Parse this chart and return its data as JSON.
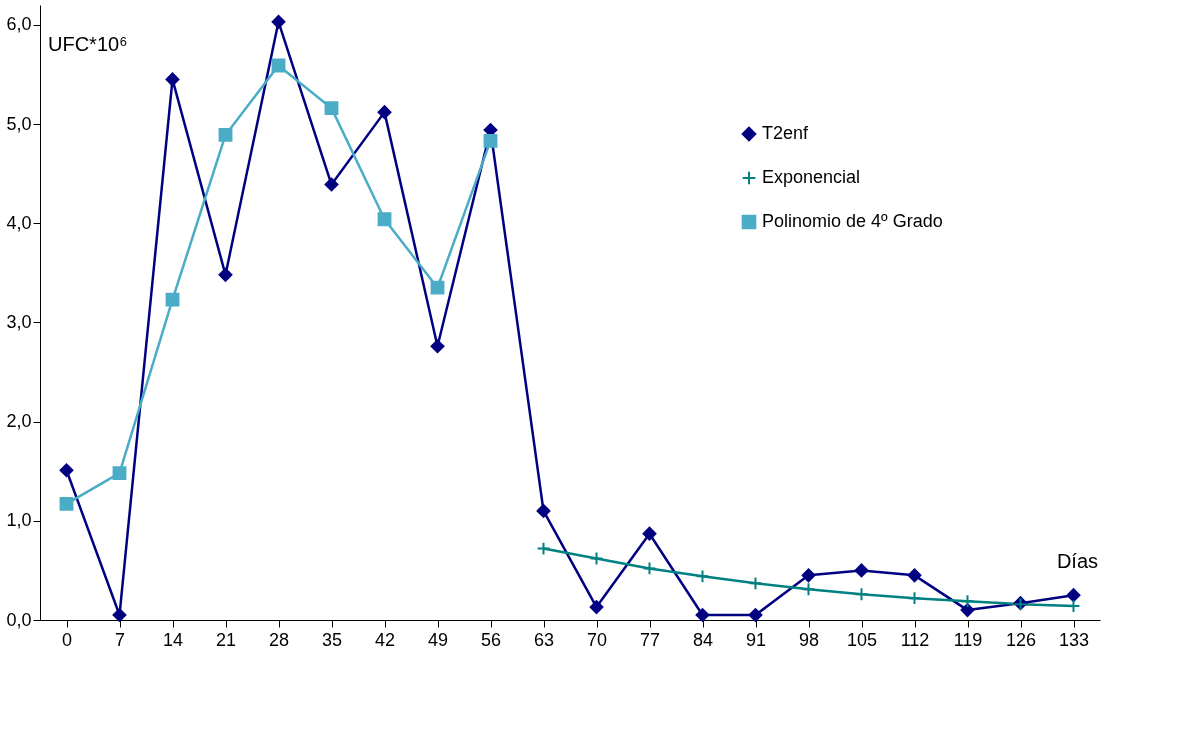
{
  "chart_data": {
    "type": "line",
    "xlabel": "Días",
    "ylabel": "UFC*10⁶",
    "categories": [
      "0",
      "7",
      "14",
      "21",
      "28",
      "35",
      "42",
      "49",
      "56",
      "63",
      "70",
      "77",
      "84",
      "91",
      "98",
      "105",
      "112",
      "119",
      "126",
      "133"
    ],
    "ylim": [
      0,
      6.2
    ],
    "yticks": [
      {
        "value": 0,
        "label": "0,0"
      },
      {
        "value": 1,
        "label": "1,0"
      },
      {
        "value": 2,
        "label": "2,0"
      },
      {
        "value": 3,
        "label": "3,0"
      },
      {
        "value": 4,
        "label": "4,0"
      },
      {
        "value": 5,
        "label": "5,0"
      },
      {
        "value": 6,
        "label": "6,0"
      }
    ],
    "grid": false,
    "legend": "right",
    "line_style": "solid",
    "series": [
      {
        "name": "T2enf",
        "color": "#000080",
        "marker": "diamond",
        "values": [
          1.51,
          0.05,
          5.45,
          3.48,
          6.03,
          4.39,
          5.12,
          2.76,
          4.94,
          1.1,
          0.13,
          0.87,
          0.05,
          0.05,
          0.45,
          0.5,
          0.45,
          0.1,
          0.17,
          0.25
        ]
      },
      {
        "name": "Exponencial",
        "color": "#008080",
        "marker": "cross",
        "values": [
          null,
          null,
          null,
          null,
          null,
          null,
          null,
          null,
          null,
          0.72,
          0.62,
          0.52,
          0.44,
          0.37,
          0.31,
          0.26,
          0.22,
          0.19,
          0.16,
          0.14
        ]
      },
      {
        "name": "Polinomio de 4º Grado",
        "color": "#4bacc6",
        "marker": "square",
        "values": [
          1.17,
          1.48,
          3.23,
          4.89,
          5.59,
          5.16,
          4.04,
          3.35,
          4.83,
          null,
          null,
          null,
          null,
          null,
          null,
          null,
          null,
          null,
          null,
          null
        ]
      }
    ]
  }
}
